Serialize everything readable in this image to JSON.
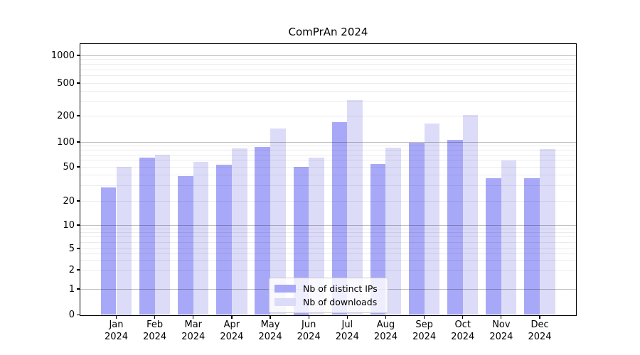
{
  "chart_data": {
    "type": "bar",
    "title": "ComPrAn 2024",
    "categories": [
      "Jan",
      "Feb",
      "Mar",
      "Apr",
      "May",
      "Jun",
      "Jul",
      "Aug",
      "Sep",
      "Oct",
      "Nov",
      "Dec"
    ],
    "x_year_label": "2024",
    "series": [
      {
        "name": "Nb of distinct IPs",
        "color": "#a8a8f8",
        "values": [
          29,
          65,
          39,
          53,
          87,
          50,
          170,
          54,
          98,
          105,
          37,
          37
        ]
      },
      {
        "name": "Nb of downloads",
        "color": "#dcdcf8",
        "values": [
          50,
          70,
          57,
          84,
          143,
          65,
          310,
          85,
          163,
          205,
          60,
          82
        ]
      }
    ],
    "yticks": [
      0,
      1,
      2,
      5,
      10,
      20,
      50,
      100,
      200,
      500,
      1000
    ],
    "ytick_labels": [
      "0",
      "1",
      "2",
      "5",
      "10",
      "20",
      "50",
      "100",
      "200",
      "500",
      "1000"
    ],
    "yscale": "symlog",
    "ylim": [
      0,
      1300
    ],
    "grid": "both",
    "legend": {
      "position": "lower center"
    }
  }
}
